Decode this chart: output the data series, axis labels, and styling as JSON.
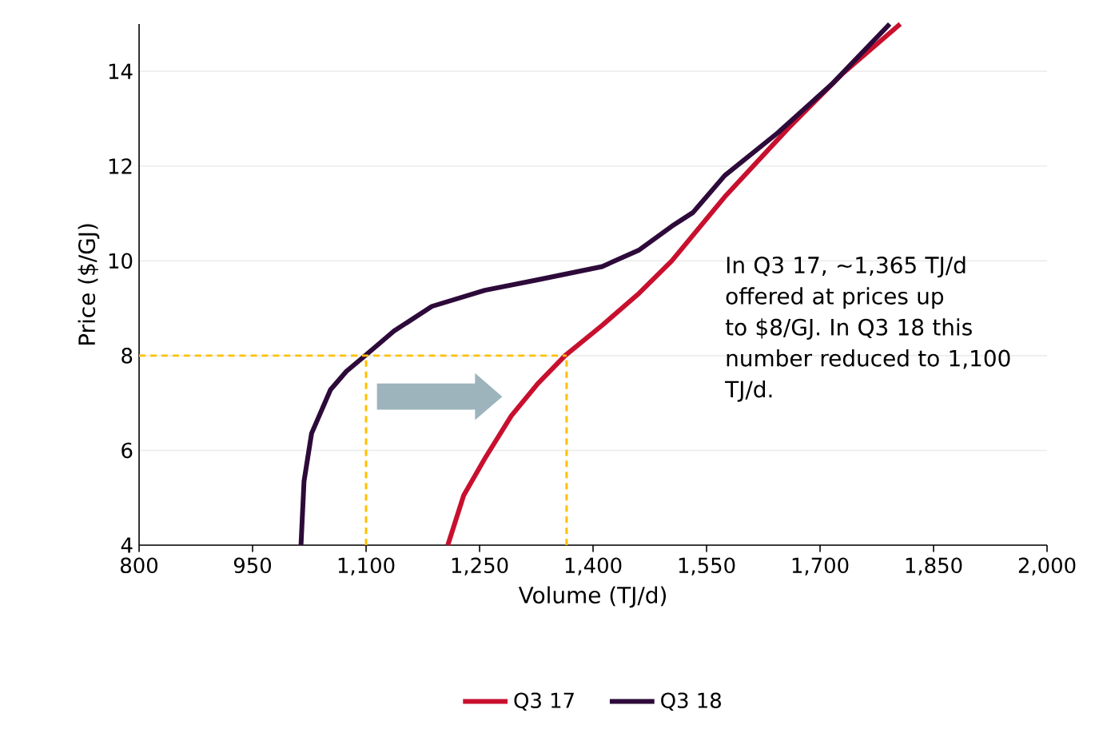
{
  "chart_data": {
    "type": "line",
    "xlabel": "Volume (TJ/d)",
    "ylabel": "Price ($/GJ)",
    "xlim": [
      800,
      2000
    ],
    "xticks": [
      {
        "value": 800,
        "label": "800"
      },
      {
        "value": 950,
        "label": "950"
      },
      {
        "value": 1100,
        "label": "1,100"
      },
      {
        "value": 1250,
        "label": "1,250"
      },
      {
        "value": 1400,
        "label": "1,400"
      },
      {
        "value": 1550,
        "label": "1,550"
      },
      {
        "value": 1700,
        "label": "1,700"
      },
      {
        "value": 1850,
        "label": "1,850"
      },
      {
        "value": 2000,
        "label": "2,000"
      }
    ],
    "ylim": [
      4,
      15
    ],
    "yticks": [
      4,
      6,
      8,
      10,
      12,
      14
    ],
    "grid": "y",
    "legend": "bottom",
    "marker": "none",
    "line_style": "solid",
    "annotations": [
      "In Q3 17, ~1,365 TJ/d offered at prices up to $8/GJ. In Q3 18 this number reduced to 1,100 TJ/d."
    ],
    "series": [
      {
        "name": "Q3 17",
        "color": "#c8102e",
        "x": [
          1208,
          1229,
          1257,
          1292,
          1327,
          1363,
          1412,
          1461,
          1504,
          1574,
          1658,
          1729,
          1806
        ],
        "values": [
          4,
          5.05,
          5.83,
          6.73,
          7.41,
          8.0,
          8.64,
          9.32,
          10.0,
          11.35,
          12.8,
          13.94,
          15
        ]
      },
      {
        "name": "Q3 18",
        "color": "#2d0a3a",
        "x": [
          1014,
          1018,
          1028,
          1053,
          1074,
          1098,
          1137,
          1187,
          1257,
          1327,
          1412,
          1461,
          1504,
          1532,
          1574,
          1644,
          1715,
          1792
        ],
        "values": [
          4,
          5.35,
          6.36,
          7.28,
          7.67,
          7.99,
          8.52,
          9.04,
          9.38,
          9.6,
          9.88,
          10.23,
          10.73,
          11.02,
          11.8,
          12.7,
          13.72,
          15
        ]
      },
      {
        "color": "#ffc000",
        "line_style": "dashed",
        "x": [
          800,
          1365
        ],
        "values": [
          8,
          8
        ]
      },
      {
        "color": "#ffc000",
        "line_style": "dashed",
        "x": [
          1100,
          1100
        ],
        "values": [
          4,
          8
        ]
      },
      {
        "color": "#ffc000",
        "line_style": "dashed",
        "x": [
          1365,
          1365
        ],
        "values": [
          4,
          8
        ]
      }
    ]
  }
}
